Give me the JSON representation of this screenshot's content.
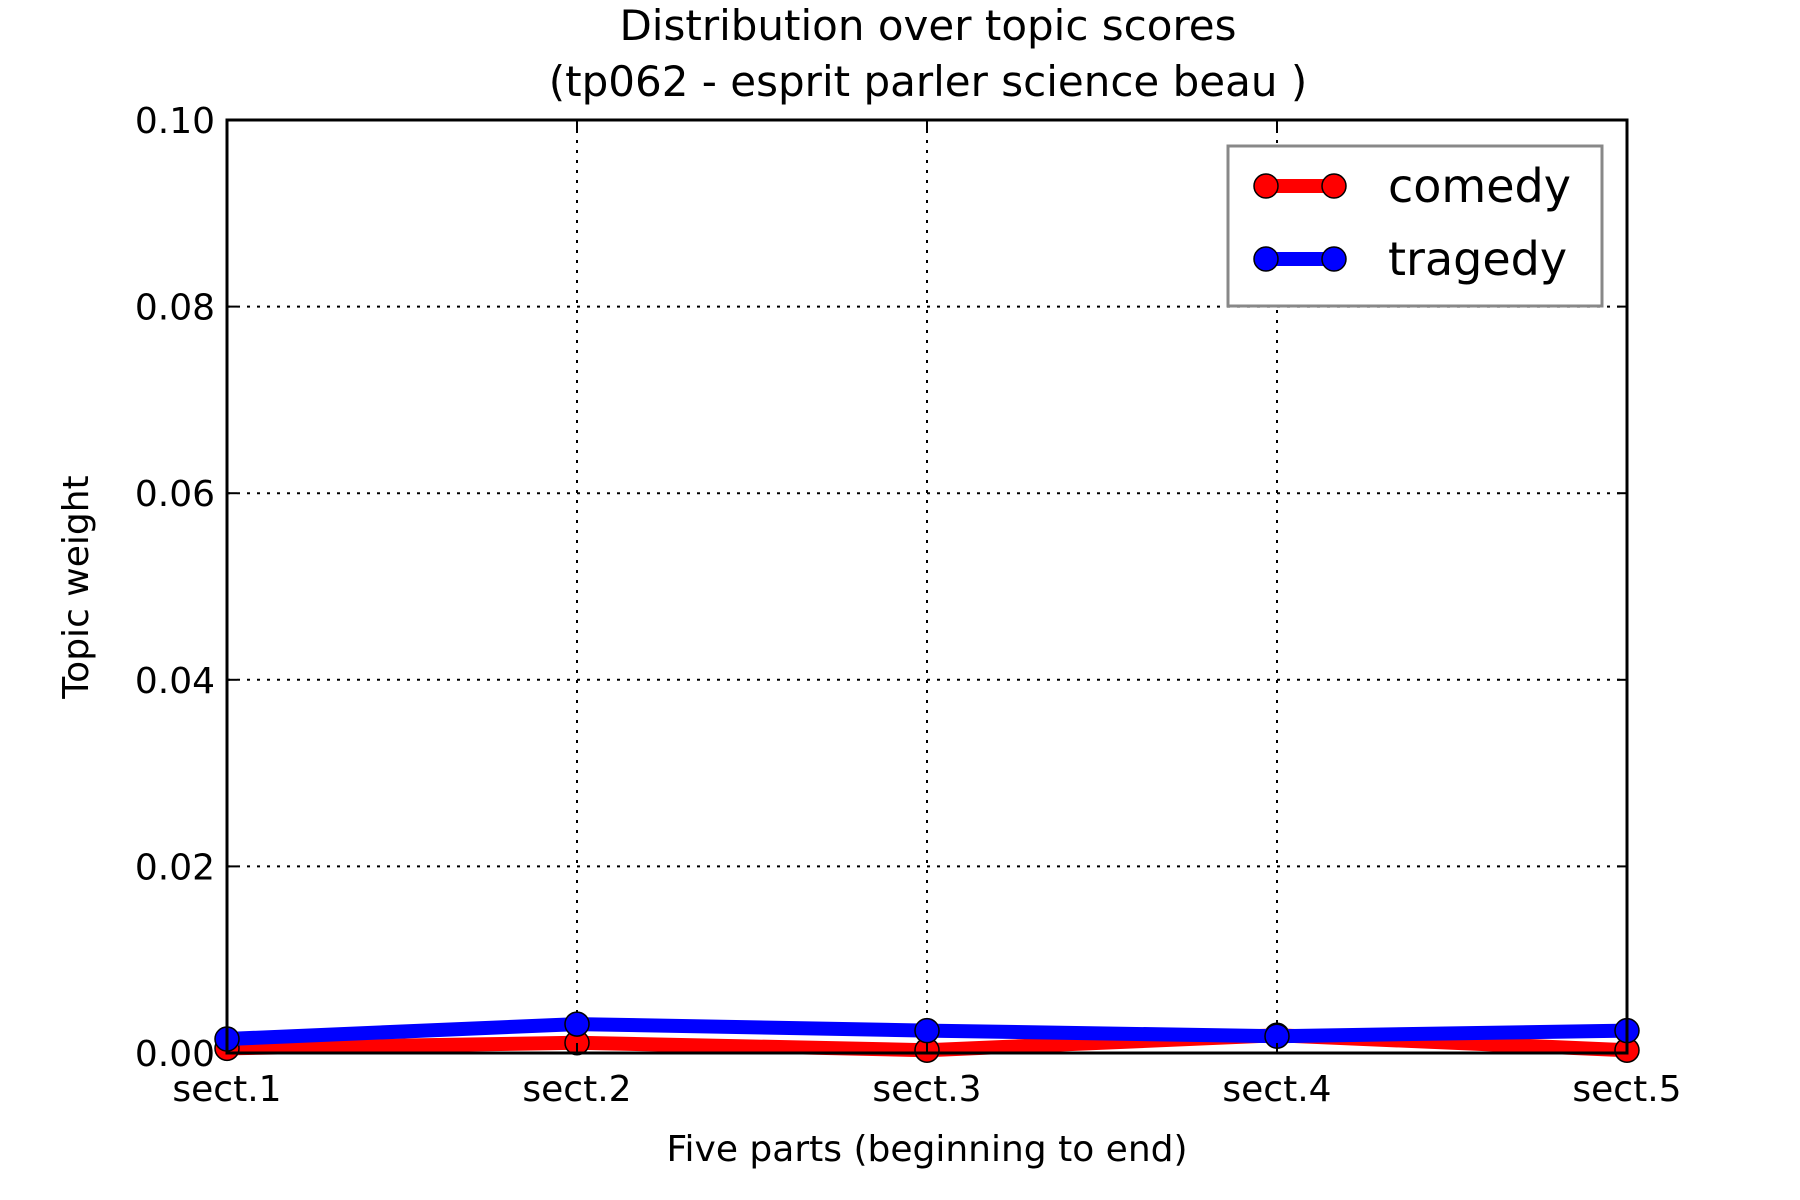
{
  "chart_data": {
    "type": "line",
    "title": "Distribution over topic scores",
    "subtitle": "(tp062 - esprit parler science beau )",
    "xlabel": "Five parts (beginning to end)",
    "ylabel": "Topic weight",
    "categories": [
      "sect.1",
      "sect.2",
      "sect.3",
      "sect.4",
      "sect.5"
    ],
    "ylim": [
      0,
      0.1
    ],
    "yticks": [
      "0.00",
      "0.02",
      "0.04",
      "0.06",
      "0.08",
      "0.10"
    ],
    "grid": true,
    "legend_position": "top-right",
    "series": [
      {
        "name": "comedy",
        "color": "#ff0000",
        "values": [
          0.0005,
          0.0011,
          0.0003,
          0.0019,
          0.0003
        ]
      },
      {
        "name": "tragedy",
        "color": "#0000ff",
        "values": [
          0.0015,
          0.0031,
          0.0024,
          0.0018,
          0.0024
        ]
      }
    ]
  }
}
